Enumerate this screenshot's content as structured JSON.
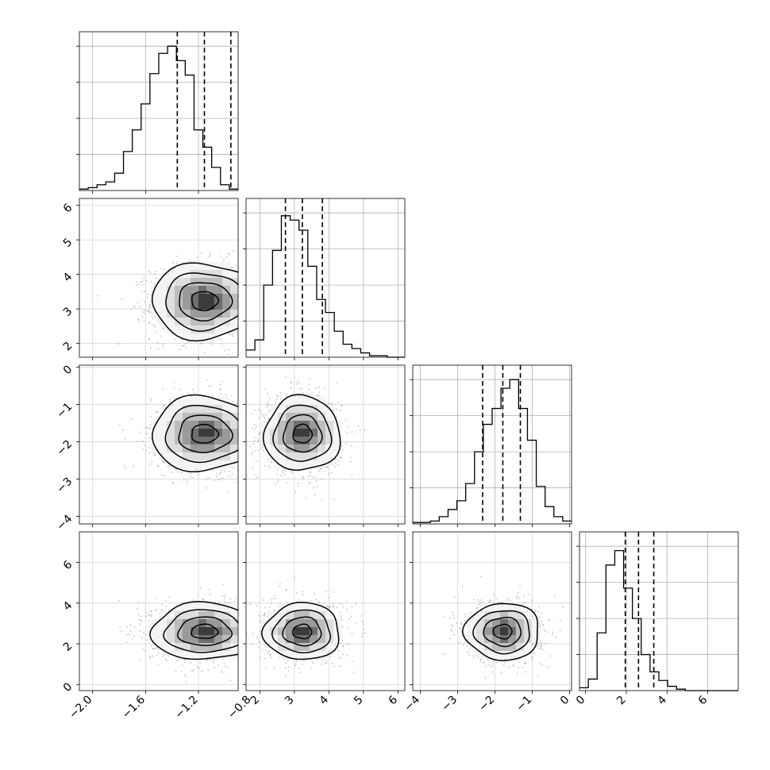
{
  "chart_data": {
    "type": "corner",
    "n_params": 4,
    "ranges": [
      [
        -2.1,
        -0.9
      ],
      [
        1.6,
        6.2
      ],
      [
        -4.2,
        0.05
      ],
      [
        -0.3,
        7.5
      ]
    ],
    "ranges_note": "axis limits in data units per parameter",
    "ticks": [
      {
        "values": [
          -2.0,
          -1.6,
          -1.2,
          -0.8
        ],
        "labels": [
          "−2.0",
          "−1.6",
          "−1.2",
          "−0.8"
        ]
      },
      {
        "values": [
          2,
          3,
          4,
          5,
          6
        ],
        "labels": [
          "2",
          "3",
          "4",
          "5",
          "6"
        ]
      },
      {
        "values": [
          -4,
          -3,
          -2,
          -1,
          0
        ],
        "labels": [
          "−4",
          "−3",
          "−2",
          "−1",
          "0"
        ]
      },
      {
        "values": [
          0,
          2,
          4,
          6
        ],
        "labels": [
          "0",
          "2",
          "4",
          "6"
        ]
      }
    ],
    "quantiles": [
      [
        -1.36,
        -1.155,
        -0.955
      ],
      [
        2.74,
        3.23,
        3.81
      ],
      [
        -2.33,
        -1.79,
        -1.32
      ],
      [
        1.95,
        2.6,
        3.35
      ]
    ],
    "means": [
      -1.155,
      3.23,
      -1.79,
      2.6
    ],
    "sigmas": [
      0.2,
      0.55,
      0.5,
      0.7
    ],
    "histograms": [
      [
        0.01,
        0.02,
        0.04,
        0.06,
        0.12,
        0.27,
        0.42,
        0.6,
        0.81,
        0.95,
        1.0,
        0.9,
        0.8,
        0.42,
        0.3,
        0.16,
        0.04,
        0.01
      ],
      [
        0.05,
        0.12,
        0.5,
        0.74,
        0.98,
        0.95,
        0.88,
        0.63,
        0.4,
        0.31,
        0.18,
        0.09,
        0.06,
        0.03,
        0.01,
        0.01,
        0.0,
        0.0
      ],
      [
        0.01,
        0.01,
        0.02,
        0.05,
        0.1,
        0.16,
        0.28,
        0.5,
        0.69,
        0.8,
        0.94,
        1.0,
        0.8,
        0.58,
        0.26,
        0.12,
        0.05,
        0.02
      ],
      [
        0.02,
        0.08,
        0.4,
        0.87,
        0.97,
        0.71,
        0.5,
        0.25,
        0.13,
        0.07,
        0.03,
        0.01,
        0.0,
        0.0,
        0.0,
        0.0,
        0.0,
        0.0
      ]
    ],
    "hist_ymax": [
      1.1,
      1.1,
      1.1,
      1.1
    ],
    "correlations": {
      "1-0": 0.05,
      "2-0": 0.0,
      "2-1": -0.05,
      "3-0": 0.0,
      "3-1": 0.0,
      "3-2": 0.0
    },
    "contour_levels_sigma": [
      0.5,
      1.0,
      1.5,
      2.0
    ],
    "grid": true,
    "density_colormap": "greys"
  }
}
